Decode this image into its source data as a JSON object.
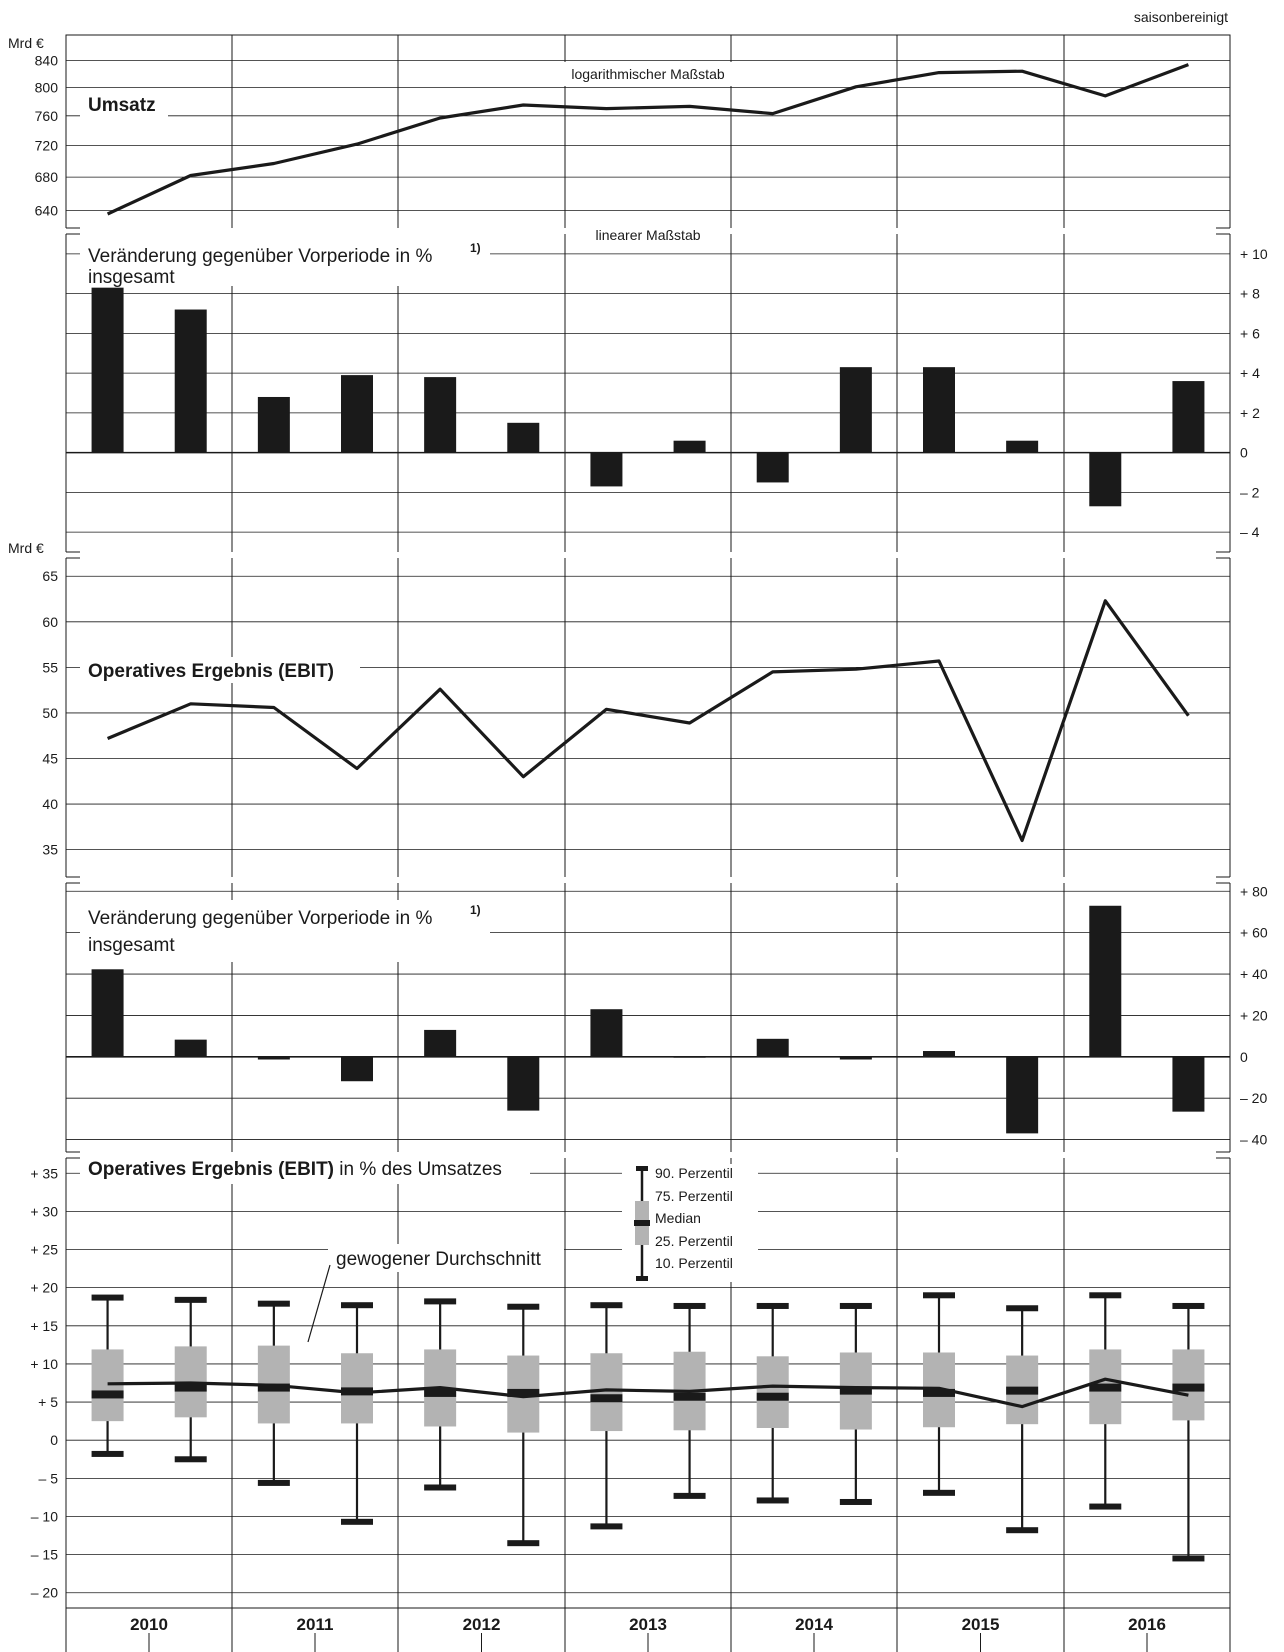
{
  "chart_data": [
    {
      "type": "line",
      "note": "saisonbereinigt",
      "unit": "Mrd €",
      "title": "Umsatz",
      "scale_label": "logarithmischer Maßstab",
      "log_scale": true,
      "yticks": [
        640,
        680,
        720,
        760,
        800,
        840
      ],
      "ylim": [
        620,
        880
      ],
      "x": [
        "2010 Q1",
        "2010 Q2",
        "2011 Q1",
        "2011 Q2",
        "2012 Q1",
        "2012 Q2",
        "2013 Q1",
        "2013 Q2",
        "2014 Q1",
        "2014 Q2",
        "2015 Q1",
        "2015 Q2",
        "2016 Q1",
        "2016 Q2"
      ],
      "values": [
        636,
        682,
        697,
        722,
        757,
        775,
        770,
        773,
        763,
        801,
        822,
        824,
        788,
        834
      ]
    },
    {
      "type": "bar",
      "title": "Veränderung gegenüber Vorperiode in %",
      "footnote": "1)",
      "series_label": "insgesamt",
      "scale_label": "linearer Maßstab",
      "yticks": [
        -4,
        -2,
        0,
        2,
        4,
        6,
        8,
        10
      ],
      "ytick_labels": [
        "– 4",
        "– 2",
        "0",
        "+ 2",
        "+ 4",
        "+ 6",
        "+ 8",
        "+ 10"
      ],
      "ylim": [
        -5,
        11
      ],
      "values": [
        8.3,
        7.2,
        2.8,
        3.9,
        3.8,
        1.5,
        -1.7,
        0.6,
        -1.5,
        4.3,
        4.3,
        0.6,
        -2.7,
        3.6
      ]
    },
    {
      "type": "line",
      "unit": "Mrd €",
      "title": "Operatives Ergebnis (EBIT)",
      "yticks": [
        35,
        40,
        45,
        50,
        55,
        60,
        65
      ],
      "ylim": [
        32,
        67
      ],
      "values": [
        47.2,
        51.0,
        50.6,
        43.9,
        52.6,
        43.0,
        50.4,
        48.9,
        54.5,
        54.8,
        55.7,
        36.0,
        62.3,
        49.7
      ]
    },
    {
      "type": "bar",
      "title": "Veränderung gegenüber Vorperiode in %",
      "footnote": "1)",
      "series_label": "insgesamt",
      "yticks": [
        -40,
        -20,
        0,
        20,
        40,
        60,
        80
      ],
      "ytick_labels": [
        "– 40",
        "– 20",
        "0",
        "+ 20",
        "+ 40",
        "+ 60",
        "+ 80"
      ],
      "ylim": [
        -46,
        84
      ],
      "values": [
        42.3,
        8.3,
        -1.3,
        -11.8,
        13.0,
        -26.0,
        23.0,
        0.3,
        8.7,
        -1.3,
        2.8,
        -37.0,
        73.0,
        -26.5
      ]
    },
    {
      "type": "box",
      "title": "Operatives Ergebnis (EBIT)",
      "title_suffix": "in % des Umsatzes",
      "yticks": [
        -20,
        -15,
        -10,
        -5,
        0,
        5,
        10,
        15,
        20,
        25,
        30,
        35
      ],
      "ytick_labels": [
        "– 20",
        "– 15",
        "– 10",
        "– 5",
        "0",
        "+ 5",
        "+ 10",
        "+ 15",
        "+ 20",
        "+ 25",
        "+ 30",
        "+ 35"
      ],
      "ylim": [
        -22,
        37
      ],
      "legend": [
        "90. Perzentil",
        "75. Perzentil",
        "Median",
        "25. Perzentil",
        "10. Perzentil"
      ],
      "weighted_avg_label": "gewogener Durchschnitt",
      "p10": [
        -1.8,
        -2.5,
        -5.6,
        -10.7,
        -6.2,
        -13.5,
        -11.3,
        -7.3,
        -7.9,
        -8.1,
        -6.9,
        -11.8,
        -8.7,
        -15.5
      ],
      "p25": [
        2.5,
        3.0,
        2.2,
        2.2,
        1.8,
        1.0,
        1.2,
        1.3,
        1.6,
        1.4,
        1.7,
        2.1,
        2.1,
        2.6
      ],
      "median": [
        6.0,
        6.9,
        6.9,
        6.4,
        6.2,
        6.2,
        5.5,
        5.7,
        5.7,
        6.5,
        6.2,
        6.5,
        6.9,
        6.9
      ],
      "p75": [
        11.9,
        12.3,
        12.4,
        11.4,
        11.9,
        11.1,
        11.4,
        11.6,
        11.0,
        11.5,
        11.5,
        11.1,
        11.9,
        11.9
      ],
      "p90": [
        18.7,
        18.4,
        17.9,
        17.7,
        18.2,
        17.5,
        17.7,
        17.6,
        17.6,
        17.6,
        19.0,
        17.3,
        19.0,
        17.6
      ],
      "weighted_avg": [
        7.4,
        7.5,
        7.2,
        6.2,
        6.9,
        5.7,
        6.6,
        6.4,
        7.1,
        6.9,
        6.8,
        4.4,
        8.0,
        5.9
      ]
    }
  ],
  "x_axis": {
    "years": [
      "2010",
      "2011",
      "2012",
      "2013",
      "2014",
      "2015",
      "2016"
    ]
  }
}
